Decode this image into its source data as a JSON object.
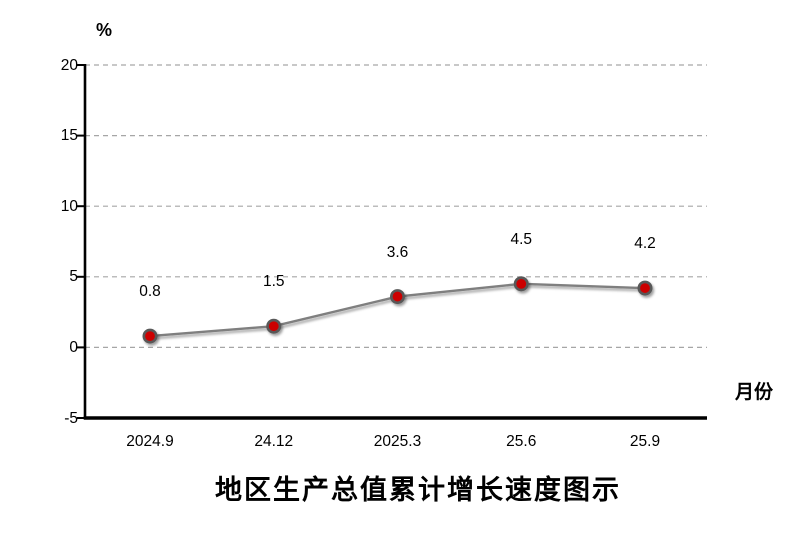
{
  "chart_data": {
    "type": "line",
    "title": "地区生产总值累计增长速度图示",
    "ylabel": "%",
    "xlabel": "月份",
    "categories": [
      "2024.9",
      "24.12",
      "2025.3",
      "25.6",
      "25.9"
    ],
    "values": [
      0.8,
      1.5,
      3.6,
      4.5,
      4.2
    ],
    "data_labels": [
      "0.8",
      "1.5",
      "3.6",
      "4.5",
      "4.2"
    ],
    "ylim": [
      -5,
      20
    ],
    "yticks": [
      20,
      15,
      10,
      5,
      0,
      -5
    ],
    "grid": "horizontal-dashed",
    "legend_position": "none",
    "colors": {
      "point_fill": "#cc0000",
      "point_stroke": "#595959",
      "line": "#7f7f7f",
      "grid": "#a6a6a6",
      "axis": "#000000",
      "text": "#000000",
      "background": "#ffffff"
    }
  }
}
